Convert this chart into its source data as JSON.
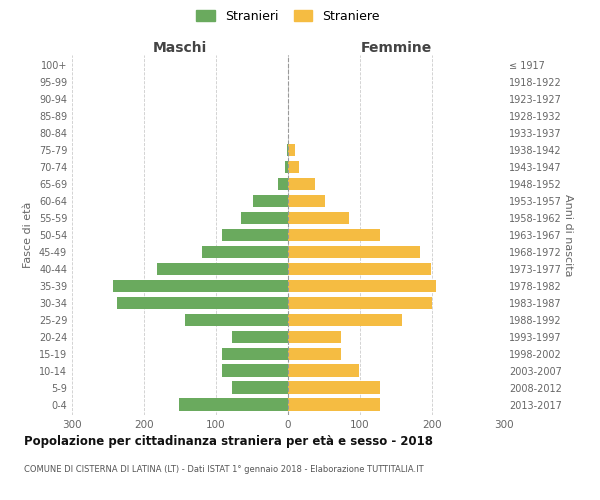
{
  "age_groups": [
    "100+",
    "95-99",
    "90-94",
    "85-89",
    "80-84",
    "75-79",
    "70-74",
    "65-69",
    "60-64",
    "55-59",
    "50-54",
    "45-49",
    "40-44",
    "35-39",
    "30-34",
    "25-29",
    "20-24",
    "15-19",
    "10-14",
    "5-9",
    "0-4"
  ],
  "birth_years": [
    "≤ 1917",
    "1918-1922",
    "1923-1927",
    "1928-1932",
    "1933-1937",
    "1938-1942",
    "1943-1947",
    "1948-1952",
    "1953-1957",
    "1958-1962",
    "1963-1967",
    "1968-1972",
    "1973-1977",
    "1978-1982",
    "1983-1987",
    "1988-1992",
    "1993-1997",
    "1998-2002",
    "2003-2007",
    "2008-2012",
    "2013-2017"
  ],
  "maschi": [
    0,
    0,
    0,
    0,
    0,
    2,
    4,
    14,
    48,
    65,
    92,
    120,
    182,
    243,
    238,
    143,
    78,
    92,
    92,
    78,
    152
  ],
  "femmine": [
    0,
    0,
    0,
    0,
    0,
    10,
    15,
    38,
    52,
    85,
    128,
    183,
    198,
    205,
    200,
    158,
    73,
    73,
    98,
    128,
    128
  ],
  "color_maschi": "#6aaa5e",
  "color_femmine": "#f5bc42",
  "title": "Popolazione per cittadinanza straniera per età e sesso - 2018",
  "subtitle": "COMUNE DI CISTERNA DI LATINA (LT) - Dati ISTAT 1° gennaio 2018 - Elaborazione TUTTITALIA.IT",
  "legend_maschi": "Stranieri",
  "legend_femmine": "Straniere",
  "label_maschi": "Maschi",
  "label_femmine": "Femmine",
  "ylabel_left": "Fasce di età",
  "ylabel_right": "Anni di nascita",
  "xlim": 300,
  "background_color": "#ffffff",
  "grid_color": "#cccccc",
  "bar_height": 0.75
}
